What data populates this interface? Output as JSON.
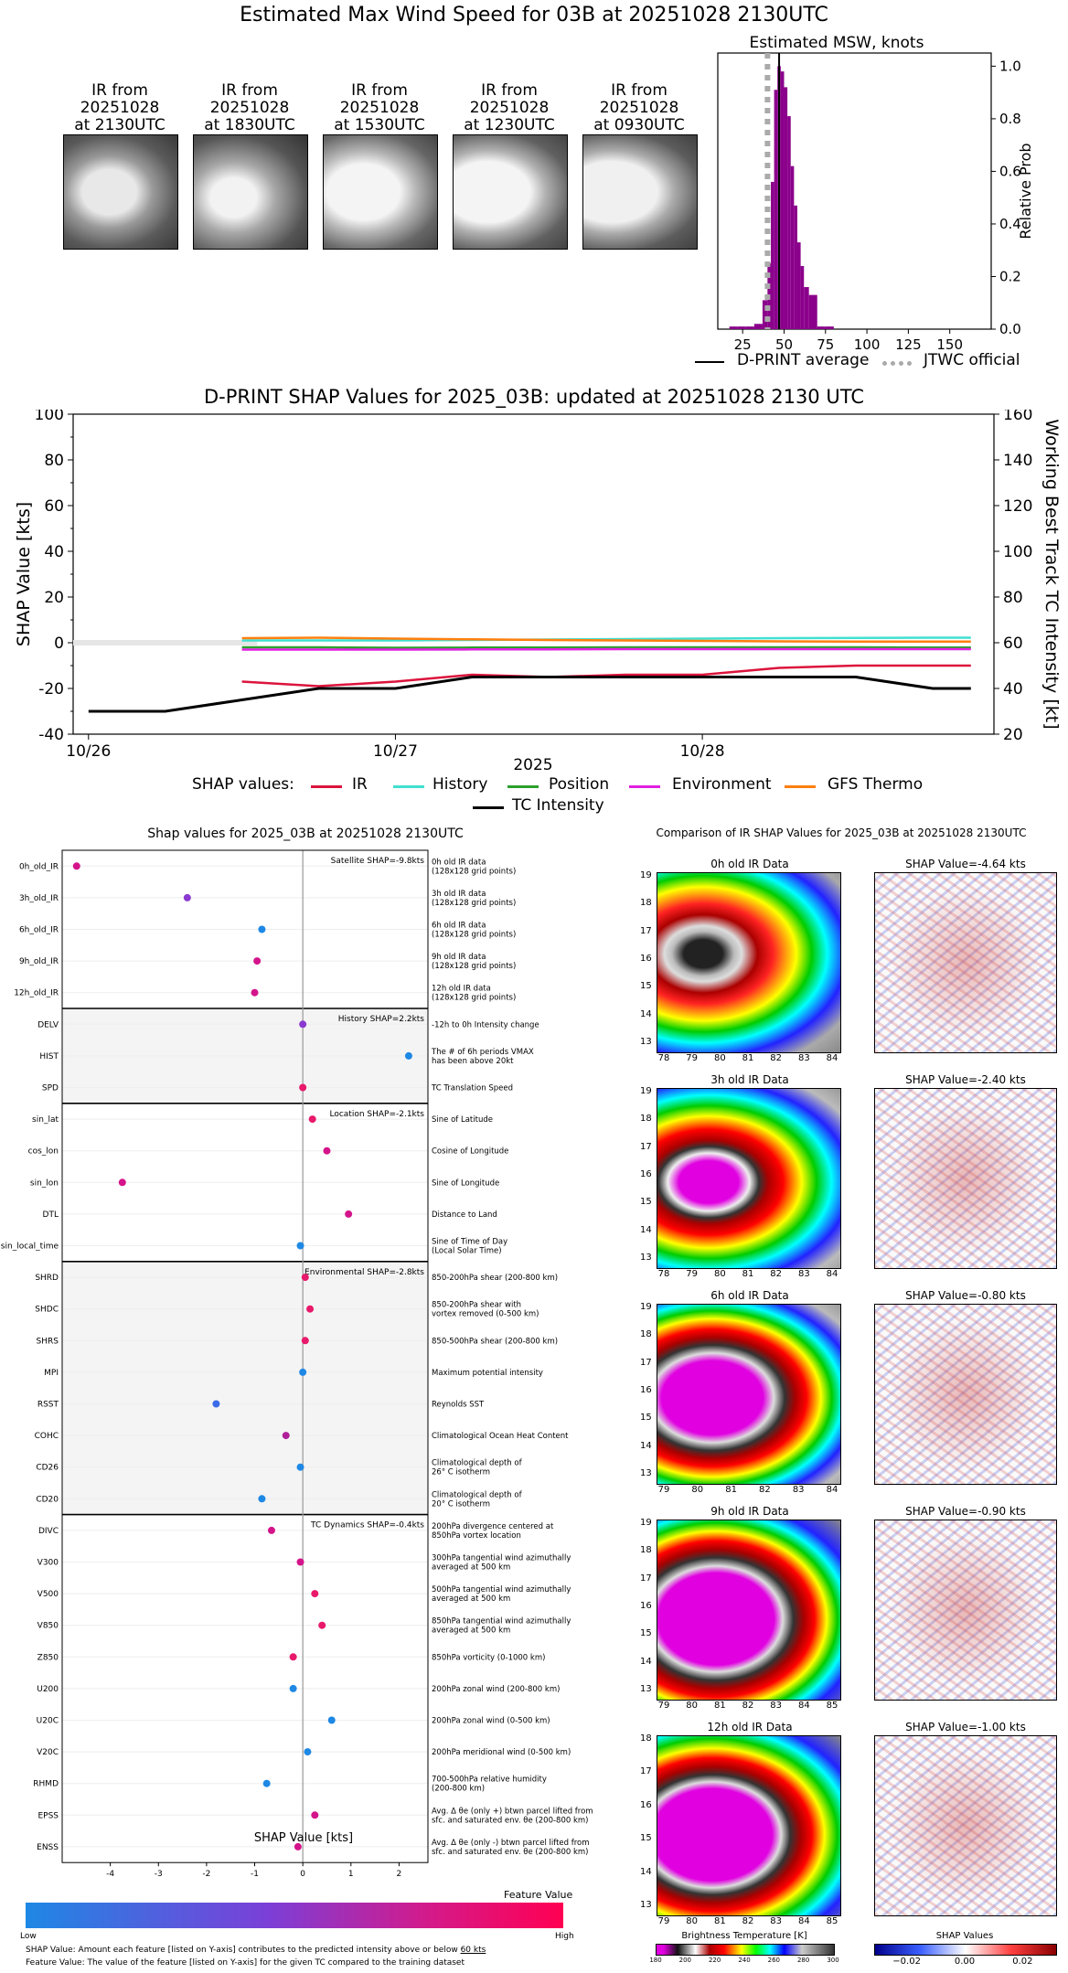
{
  "page_title": "Estimated Max Wind Speed for 03B at 20251028 2130UTC",
  "ir_thumbnails": [
    {
      "caption": "IR from\n20251028\nat 2130UTC"
    },
    {
      "caption": "IR from\n20251028\nat 1830UTC"
    },
    {
      "caption": "IR from\n20251028\nat 1530UTC"
    },
    {
      "caption": "IR from\n20251028\nat 1230UTC"
    },
    {
      "caption": "IR from\n20251028\nat 0930UTC"
    }
  ],
  "chart_data": [
    {
      "type": "bar",
      "title": "Estimated MSW, knots",
      "ylabel": "Relative Prob",
      "xlim": [
        10,
        175
      ],
      "ylim": [
        0,
        1.05
      ],
      "xticks": [
        "25",
        "50",
        "75",
        "100",
        "125",
        "150"
      ],
      "yticks": [
        "0.0",
        "0.2",
        "0.4",
        "0.6",
        "0.8",
        "1.0"
      ],
      "bins": [
        17,
        22,
        27,
        32,
        37,
        40,
        42,
        44,
        46,
        48,
        50,
        52,
        54,
        56,
        58,
        60,
        62,
        65,
        70,
        75
      ],
      "values": [
        0.01,
        0.01,
        0.01,
        0.02,
        0.11,
        0.25,
        0.56,
        0.91,
        1.0,
        0.98,
        0.92,
        0.81,
        0.62,
        0.47,
        0.33,
        0.24,
        0.16,
        0.13,
        0.01,
        0.01
      ],
      "dprint_average": 47,
      "jtwc_official": 40,
      "legend": [
        "D-PRINT average",
        "JTWC official"
      ]
    },
    {
      "type": "line",
      "title": "D-PRINT SHAP Values for 2025_03B: updated at 20251028 2130 UTC",
      "xlabel": "2025",
      "ylabel": "SHAP Value [kts]",
      "y2label": "Working Best Track TC Intensity [kt]",
      "ylim": [
        -40,
        100
      ],
      "y2lim": [
        20,
        160
      ],
      "xticks": [
        "10/26",
        "10/27",
        "10/28"
      ],
      "yticks": [
        "-40",
        "-20",
        "0",
        "20",
        "40",
        "60",
        "80",
        "100"
      ],
      "y2ticks": [
        "20",
        "40",
        "60",
        "80",
        "100",
        "120",
        "140",
        "160"
      ],
      "legend_label": "SHAP values:",
      "x": [
        0,
        0.25,
        0.5,
        0.75,
        1.0,
        1.25,
        1.5,
        1.75,
        2.0,
        2.25,
        2.5,
        2.75,
        2.875
      ],
      "series": [
        {
          "name": "IR",
          "color": "#dc143c",
          "values": [
            null,
            null,
            -17,
            -19,
            -17,
            -14,
            -15,
            -14,
            -14,
            -11,
            -10,
            -10,
            -10
          ]
        },
        {
          "name": "History",
          "color": "#40e0d0",
          "values": [
            null,
            null,
            1,
            1,
            1,
            1.2,
            1.4,
            1.6,
            1.8,
            2,
            2.1,
            2.2,
            2.2
          ]
        },
        {
          "name": "Position",
          "color": "#2ca02c",
          "values": [
            null,
            null,
            -2,
            -2,
            -2.2,
            -2.1,
            -2.1,
            -2,
            -2,
            -2,
            -2,
            -2.1,
            -2.1
          ]
        },
        {
          "name": "Environment",
          "color": "#e020e0",
          "values": [
            null,
            null,
            -3,
            -3,
            -3,
            -2.9,
            -2.9,
            -2.8,
            -2.8,
            -2.8,
            -2.8,
            -2.8,
            -2.8
          ]
        },
        {
          "name": "GFS Thermo",
          "color": "#ff7f0e",
          "values": [
            null,
            null,
            2,
            2.2,
            1.8,
            1.5,
            1.2,
            1,
            0.8,
            0.6,
            0.5,
            0.5,
            0.5
          ]
        },
        {
          "name": "TC Intensity",
          "color": "#000000",
          "axis": "right",
          "values": [
            30,
            30,
            35,
            40,
            40,
            45,
            45,
            45,
            45,
            45,
            45,
            40,
            40
          ]
        }
      ]
    },
    {
      "type": "scatter",
      "title": "Shap values for 2025_03B at 20251028 2130UTC",
      "xlabel": "SHAP Value [kts]",
      "xlim": [
        -5,
        2.6
      ],
      "xticks": [
        "-4",
        "-3",
        "-2",
        "-1",
        "0",
        "1",
        "2"
      ],
      "groups": [
        {
          "label": "Satellite SHAP=-9.8kts",
          "shaded": false,
          "features": [
            {
              "name": "0h_old_IR",
              "value": -4.7,
              "color": "#d4148a",
              "desc": "0h old IR data\n(128x128 grid points)"
            },
            {
              "name": "3h_old_IR",
              "value": -2.4,
              "color": "#8a3ad0",
              "desc": "3h old IR data\n(128x128 grid points)"
            },
            {
              "name": "6h_old_IR",
              "value": -0.85,
              "color": "#1e88e5",
              "desc": "6h old IR data\n(128x128 grid points)"
            },
            {
              "name": "9h_old_IR",
              "value": -0.95,
              "color": "#d4148a",
              "desc": "9h old IR data\n(128x128 grid points)"
            },
            {
              "name": "12h_old_IR",
              "value": -1.0,
              "color": "#d4148a",
              "desc": "12h old IR data\n(128x128 grid points)"
            }
          ]
        },
        {
          "label": "History SHAP=2.2kts",
          "shaded": true,
          "features": [
            {
              "name": "DELV",
              "value": 0.0,
              "color": "#8a3ad0",
              "desc": "-12h to 0h Intensity change"
            },
            {
              "name": "HIST",
              "value": 2.2,
              "color": "#1e88e5",
              "desc": "The # of 6h periods VMAX\nhas been above 20kt"
            },
            {
              "name": "SPD",
              "value": 0.0,
              "color": "#e8186a",
              "desc": "TC Translation Speed"
            }
          ]
        },
        {
          "label": "Location SHAP=-2.1kts",
          "shaded": false,
          "features": [
            {
              "name": "sin_lat",
              "value": 0.2,
              "color": "#e8186a",
              "desc": "Sine of Latitude"
            },
            {
              "name": "cos_lon",
              "value": 0.5,
              "color": "#d4148a",
              "desc": "Cosine of Longitude"
            },
            {
              "name": "sin_lon",
              "value": -3.75,
              "color": "#d4148a",
              "desc": "Sine of Longitude"
            },
            {
              "name": "DTL",
              "value": 0.95,
              "color": "#d4148a",
              "desc": "Distance to Land"
            },
            {
              "name": "sin_local_time",
              "value": -0.05,
              "color": "#1e88e5",
              "desc": "Sine of Time of Day\n(Local Solar Time)"
            }
          ]
        },
        {
          "label": "Environmental SHAP=-2.8kts",
          "shaded": true,
          "features": [
            {
              "name": "SHRD",
              "value": 0.05,
              "color": "#e8186a",
              "desc": "850-200hPa shear (200-800 km)"
            },
            {
              "name": "SHDC",
              "value": 0.15,
              "color": "#e8186a",
              "desc": "850-200hPa shear with\nvortex removed (0-500 km)"
            },
            {
              "name": "SHRS",
              "value": 0.05,
              "color": "#e8186a",
              "desc": "850-500hPa shear (200-800 km)"
            },
            {
              "name": "MPI",
              "value": 0.0,
              "color": "#1e88e5",
              "desc": "Maximum potential intensity"
            },
            {
              "name": "RSST",
              "value": -1.8,
              "color": "#3a6ae8",
              "desc": "Reynolds SST"
            },
            {
              "name": "COHC",
              "value": -0.35,
              "color": "#b01e9a",
              "desc": "Climatological Ocean Heat Content"
            },
            {
              "name": "CD26",
              "value": -0.05,
              "color": "#1e88e5",
              "desc": "Climatological depth of\n26° C isotherm"
            },
            {
              "name": "CD20",
              "value": -0.85,
              "color": "#1e88e5",
              "desc": "Climatological depth of\n20° C isotherm"
            }
          ]
        },
        {
          "label": "TC Dynamics SHAP=-0.4kts",
          "shaded": false,
          "features": [
            {
              "name": "DIVC",
              "value": -0.65,
              "color": "#d4148a",
              "desc": "200hPa divergence centered at\n850hPa vortex location"
            },
            {
              "name": "V300",
              "value": -0.05,
              "color": "#d4148a",
              "desc": "300hPa tangential wind azimuthally\naveraged at 500 km"
            },
            {
              "name": "V500",
              "value": 0.25,
              "color": "#e8186a",
              "desc": "500hPa tangential wind azimuthally\naveraged at 500 km"
            },
            {
              "name": "V850",
              "value": 0.4,
              "color": "#e8186a",
              "desc": "850hPa tangential wind azimuthally\naveraged at 500 km"
            },
            {
              "name": "Z850",
              "value": -0.2,
              "color": "#e8186a",
              "desc": "850hPa vorticity (0-1000 km)"
            },
            {
              "name": "U200",
              "value": -0.2,
              "color": "#1e88e5",
              "desc": "200hPa zonal wind (200-800 km)"
            },
            {
              "name": "U20C",
              "value": 0.6,
              "color": "#1e88e5",
              "desc": "200hPa zonal wind (0-500 km)"
            },
            {
              "name": "V20C",
              "value": 0.1,
              "color": "#1e88e5",
              "desc": "200hPa meridional wind (0-500 km)"
            },
            {
              "name": "RHMD",
              "value": -0.75,
              "color": "#1e88e5",
              "desc": "700-500hPa relative humidity\n(200-800 km)"
            },
            {
              "name": "EPSS",
              "value": 0.25,
              "color": "#d4148a",
              "desc": "Avg. Δ θe (only +) btwn parcel lifted from\nsfc. and saturated env. θe (200-800 km)"
            },
            {
              "name": "ENSS",
              "value": -0.1,
              "color": "#d4148a",
              "desc": "Avg. Δ θe (only -) btwn parcel lifted from\nsfc. and saturated env. θe (200-800 km)"
            }
          ]
        }
      ]
    }
  ],
  "legend_top": {
    "dprint": "D-PRINT average",
    "jtwc": "JTWC official"
  },
  "legend_mid": {
    "label": "SHAP values:",
    "ir": "IR",
    "history": "History",
    "position": "Position",
    "environment": "Environment",
    "gfs": "GFS Thermo",
    "tc": "TC Intensity"
  },
  "feature_bar": {
    "title": "Feature Value",
    "low": "Low",
    "high": "High"
  },
  "footnotes": {
    "line1_prefix": "SHAP Value: Amount each feature [listed on Y-axis] contributes to the predicted intensity above or below ",
    "line1_link": "60 kts",
    "line2": "Feature Value: The value of the feature [listed on Y-axis] for the given TC compared to the training dataset"
  },
  "comparison": {
    "title": "Comparison of IR SHAP Values for 2025_03B at 20251028 2130UTC",
    "rows": [
      {
        "ir_title": "0h old IR Data",
        "shap_title": "SHAP Value=-4.64 kts",
        "xticks": [
          "78",
          "79",
          "80",
          "81",
          "82",
          "83",
          "84"
        ],
        "yticks": [
          "19",
          "18",
          "17",
          "16",
          "15",
          "14",
          "13"
        ]
      },
      {
        "ir_title": "3h old IR Data",
        "shap_title": "SHAP Value=-2.40 kts",
        "xticks": [
          "78",
          "79",
          "80",
          "81",
          "82",
          "83",
          "84"
        ],
        "yticks": [
          "19",
          "18",
          "17",
          "16",
          "15",
          "14",
          "13"
        ]
      },
      {
        "ir_title": "6h old IR Data",
        "shap_title": "SHAP Value=-0.80 kts",
        "xticks": [
          "79",
          "80",
          "81",
          "82",
          "83",
          "84"
        ],
        "yticks": [
          "19",
          "18",
          "17",
          "16",
          "15",
          "14",
          "13"
        ]
      },
      {
        "ir_title": "9h old IR Data",
        "shap_title": "SHAP Value=-0.90 kts",
        "xticks": [
          "79",
          "80",
          "81",
          "82",
          "83",
          "84",
          "85"
        ],
        "yticks": [
          "19",
          "18",
          "17",
          "16",
          "15",
          "14",
          "13"
        ]
      },
      {
        "ir_title": "12h old IR Data",
        "shap_title": "SHAP Value=-1.00 kts",
        "xticks": [
          "79",
          "80",
          "81",
          "82",
          "83",
          "84",
          "85"
        ],
        "yticks": [
          "18",
          "17",
          "16",
          "15",
          "14",
          "13"
        ]
      }
    ],
    "bt_colorbar": {
      "title": "Brightness Temperature [K]",
      "ticks": [
        "180",
        "200",
        "220",
        "240",
        "260",
        "280",
        "300"
      ]
    },
    "shap_colorbar": {
      "title": "SHAP Values",
      "ticks": [
        "−0.02",
        "0.00",
        "0.02"
      ]
    }
  }
}
